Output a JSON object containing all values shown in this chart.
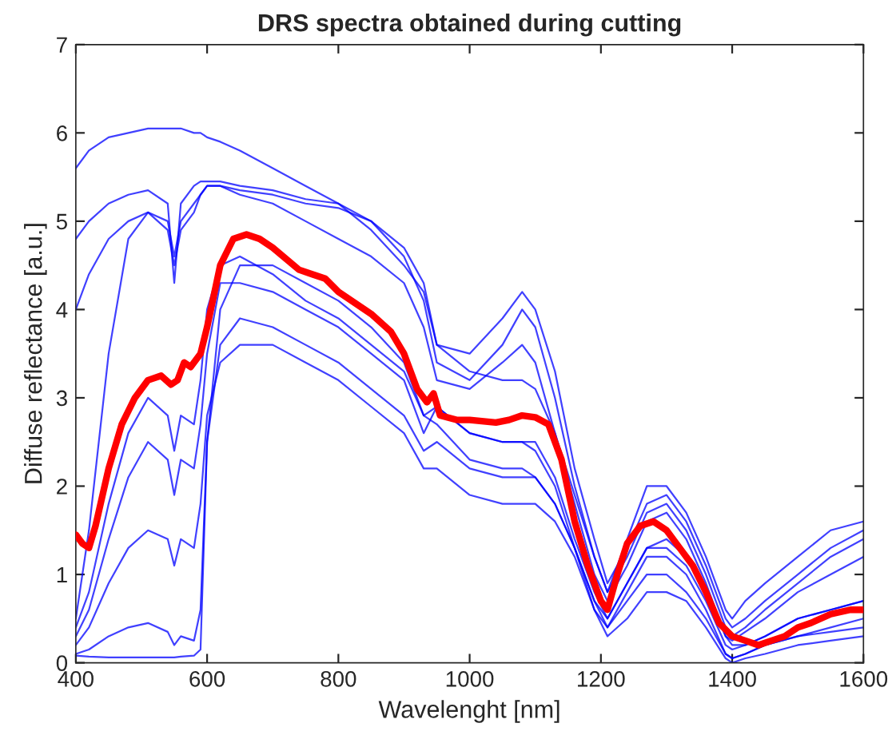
{
  "chart_data": {
    "type": "line",
    "title": "DRS spectra obtained during cutting",
    "xlabel": "Wavelenght [nm]",
    "ylabel": "Diffuse reflectance [a.u.]",
    "xlim": [
      400,
      1600
    ],
    "xticks": [
      400,
      600,
      800,
      1000,
      1200,
      1400,
      1600
    ],
    "ylim": [
      0,
      7
    ],
    "yticks": [
      0,
      1,
      2,
      3,
      4,
      5,
      6,
      7
    ],
    "grid": false,
    "x": [
      400,
      420,
      450,
      480,
      510,
      540,
      550,
      560,
      580,
      590,
      600,
      620,
      650,
      700,
      750,
      800,
      850,
      900,
      930,
      950,
      1000,
      1050,
      1080,
      1100,
      1130,
      1160,
      1190,
      1210,
      1240,
      1270,
      1300,
      1330,
      1360,
      1390,
      1400,
      1420,
      1450,
      1500,
      1550,
      1600
    ],
    "series": [
      {
        "color": "#0000ff",
        "values": [
          5.6,
          5.8,
          5.95,
          6.0,
          6.05,
          6.05,
          6.05,
          6.05,
          6.0,
          6.0,
          5.95,
          5.9,
          5.8,
          5.6,
          5.4,
          5.2,
          4.9,
          4.5,
          4.2,
          3.6,
          3.5,
          3.9,
          4.2,
          4.0,
          3.3,
          2.2,
          1.4,
          0.9,
          1.3,
          1.8,
          1.9,
          1.6,
          1.1,
          0.5,
          0.4,
          0.5,
          0.7,
          1.0,
          1.3,
          1.5
        ]
      },
      {
        "color": "#0000ff",
        "values": [
          4.8,
          5.0,
          5.2,
          5.3,
          5.35,
          5.2,
          4.3,
          5.2,
          5.4,
          5.45,
          5.45,
          5.45,
          5.4,
          5.35,
          5.25,
          5.2,
          5.0,
          4.6,
          4.1,
          3.4,
          3.2,
          3.6,
          4.0,
          3.8,
          3.0,
          2.0,
          1.2,
          0.8,
          1.2,
          1.7,
          1.8,
          1.5,
          1.0,
          0.4,
          0.3,
          0.4,
          0.6,
          0.9,
          1.2,
          1.4
        ]
      },
      {
        "color": "#0000ff",
        "values": [
          0.5,
          1.5,
          3.5,
          4.8,
          5.1,
          4.9,
          4.5,
          4.9,
          5.1,
          5.3,
          5.4,
          5.4,
          5.3,
          5.2,
          5.0,
          4.8,
          4.6,
          4.3,
          3.8,
          3.2,
          3.1,
          3.4,
          3.6,
          3.4,
          2.6,
          1.8,
          1.0,
          0.7,
          1.1,
          1.6,
          1.7,
          1.4,
          0.9,
          0.3,
          0.25,
          0.35,
          0.5,
          0.8,
          1.0,
          1.2
        ]
      },
      {
        "color": "#0000ff",
        "values": [
          0.3,
          0.6,
          1.4,
          2.1,
          2.5,
          2.3,
          1.9,
          2.3,
          2.2,
          2.7,
          3.5,
          4.3,
          4.3,
          4.2,
          4.0,
          3.8,
          3.5,
          3.2,
          2.6,
          2.9,
          2.6,
          2.5,
          2.5,
          2.5,
          2.1,
          1.4,
          0.8,
          0.5,
          0.9,
          1.3,
          1.4,
          1.2,
          0.8,
          0.3,
          0.2,
          0.2,
          0.3,
          0.5,
          0.6,
          0.7
        ]
      },
      {
        "color": "#0000ff",
        "values": [
          0.08,
          0.07,
          0.06,
          0.06,
          0.06,
          0.06,
          0.06,
          0.07,
          0.08,
          0.15,
          2.5,
          4.0,
          4.5,
          4.5,
          4.3,
          4.1,
          3.8,
          3.4,
          2.8,
          2.9,
          2.6,
          2.5,
          2.5,
          2.4,
          2.0,
          1.3,
          0.7,
          0.4,
          0.8,
          1.2,
          1.2,
          1.0,
          0.6,
          0.1,
          0.05,
          0.1,
          0.2,
          0.3,
          0.4,
          0.5
        ]
      },
      {
        "color": "#0000ff",
        "values": [
          0.2,
          0.4,
          0.9,
          1.3,
          1.5,
          1.4,
          1.1,
          1.4,
          1.3,
          1.8,
          2.8,
          3.4,
          3.6,
          3.6,
          3.4,
          3.2,
          2.9,
          2.6,
          2.2,
          2.2,
          1.9,
          1.8,
          1.8,
          1.8,
          1.6,
          1.2,
          0.6,
          0.3,
          0.5,
          0.8,
          0.8,
          0.7,
          0.4,
          0.05,
          0,
          0.05,
          0.1,
          0.2,
          0.25,
          0.3
        ]
      },
      {
        "color": "#0000ff",
        "values": [
          4.0,
          4.4,
          4.8,
          5.0,
          5.1,
          5.0,
          4.6,
          5.0,
          5.2,
          5.3,
          5.4,
          5.4,
          5.35,
          5.3,
          5.2,
          5.15,
          5.0,
          4.7,
          4.3,
          3.6,
          3.3,
          3.2,
          3.2,
          3.1,
          2.6,
          1.9,
          1.2,
          0.8,
          1.4,
          2.0,
          2.0,
          1.7,
          1.2,
          0.6,
          0.5,
          0.7,
          0.9,
          1.2,
          1.5,
          1.6
        ]
      },
      {
        "color": "#0000ff",
        "values": [
          0.4,
          0.8,
          1.8,
          2.6,
          3.0,
          2.8,
          2.4,
          2.8,
          2.7,
          3.2,
          4.0,
          4.5,
          4.6,
          4.4,
          4.1,
          3.9,
          3.6,
          3.3,
          2.8,
          2.7,
          2.3,
          2.2,
          2.2,
          2.1,
          1.8,
          1.3,
          0.6,
          0.4,
          0.7,
          1.0,
          1.0,
          0.8,
          0.5,
          0.1,
          0.05,
          0.1,
          0.2,
          0.3,
          0.35,
          0.4
        ]
      },
      {
        "color": "#0000ff",
        "values": [
          0.1,
          0.15,
          0.3,
          0.4,
          0.45,
          0.35,
          0.2,
          0.3,
          0.25,
          0.6,
          2.5,
          3.6,
          3.9,
          3.8,
          3.6,
          3.4,
          3.1,
          2.8,
          2.4,
          2.5,
          2.2,
          2.1,
          2.1,
          2.1,
          1.8,
          1.3,
          0.7,
          0.5,
          0.9,
          1.3,
          1.3,
          1.1,
          0.7,
          0.2,
          0.15,
          0.2,
          0.3,
          0.5,
          0.6,
          0.7
        ]
      },
      {
        "color": "#ff0000",
        "x": [
          400,
          410,
          420,
          430,
          450,
          470,
          490,
          510,
          530,
          545,
          555,
          565,
          575,
          590,
          600,
          620,
          640,
          660,
          680,
          700,
          740,
          760,
          780,
          800,
          850,
          880,
          900,
          920,
          935,
          945,
          955,
          980,
          1000,
          1040,
          1060,
          1080,
          1100,
          1120,
          1140,
          1160,
          1180,
          1200,
          1210,
          1225,
          1240,
          1260,
          1280,
          1300,
          1320,
          1340,
          1360,
          1380,
          1400,
          1420,
          1440,
          1460,
          1480,
          1500,
          1520,
          1550,
          1580,
          1600
        ],
        "values": [
          1.45,
          1.35,
          1.3,
          1.55,
          2.2,
          2.7,
          3.0,
          3.2,
          3.25,
          3.15,
          3.2,
          3.4,
          3.35,
          3.5,
          3.8,
          4.5,
          4.8,
          4.85,
          4.8,
          4.7,
          4.45,
          4.4,
          4.35,
          4.2,
          3.95,
          3.75,
          3.5,
          3.1,
          2.95,
          3.05,
          2.8,
          2.75,
          2.75,
          2.72,
          2.75,
          2.8,
          2.78,
          2.7,
          2.3,
          1.6,
          1.1,
          0.7,
          0.6,
          1.0,
          1.35,
          1.55,
          1.6,
          1.5,
          1.3,
          1.1,
          0.8,
          0.45,
          0.3,
          0.25,
          0.2,
          0.25,
          0.3,
          0.4,
          0.45,
          0.55,
          0.6,
          0.6
        ]
      }
    ]
  }
}
